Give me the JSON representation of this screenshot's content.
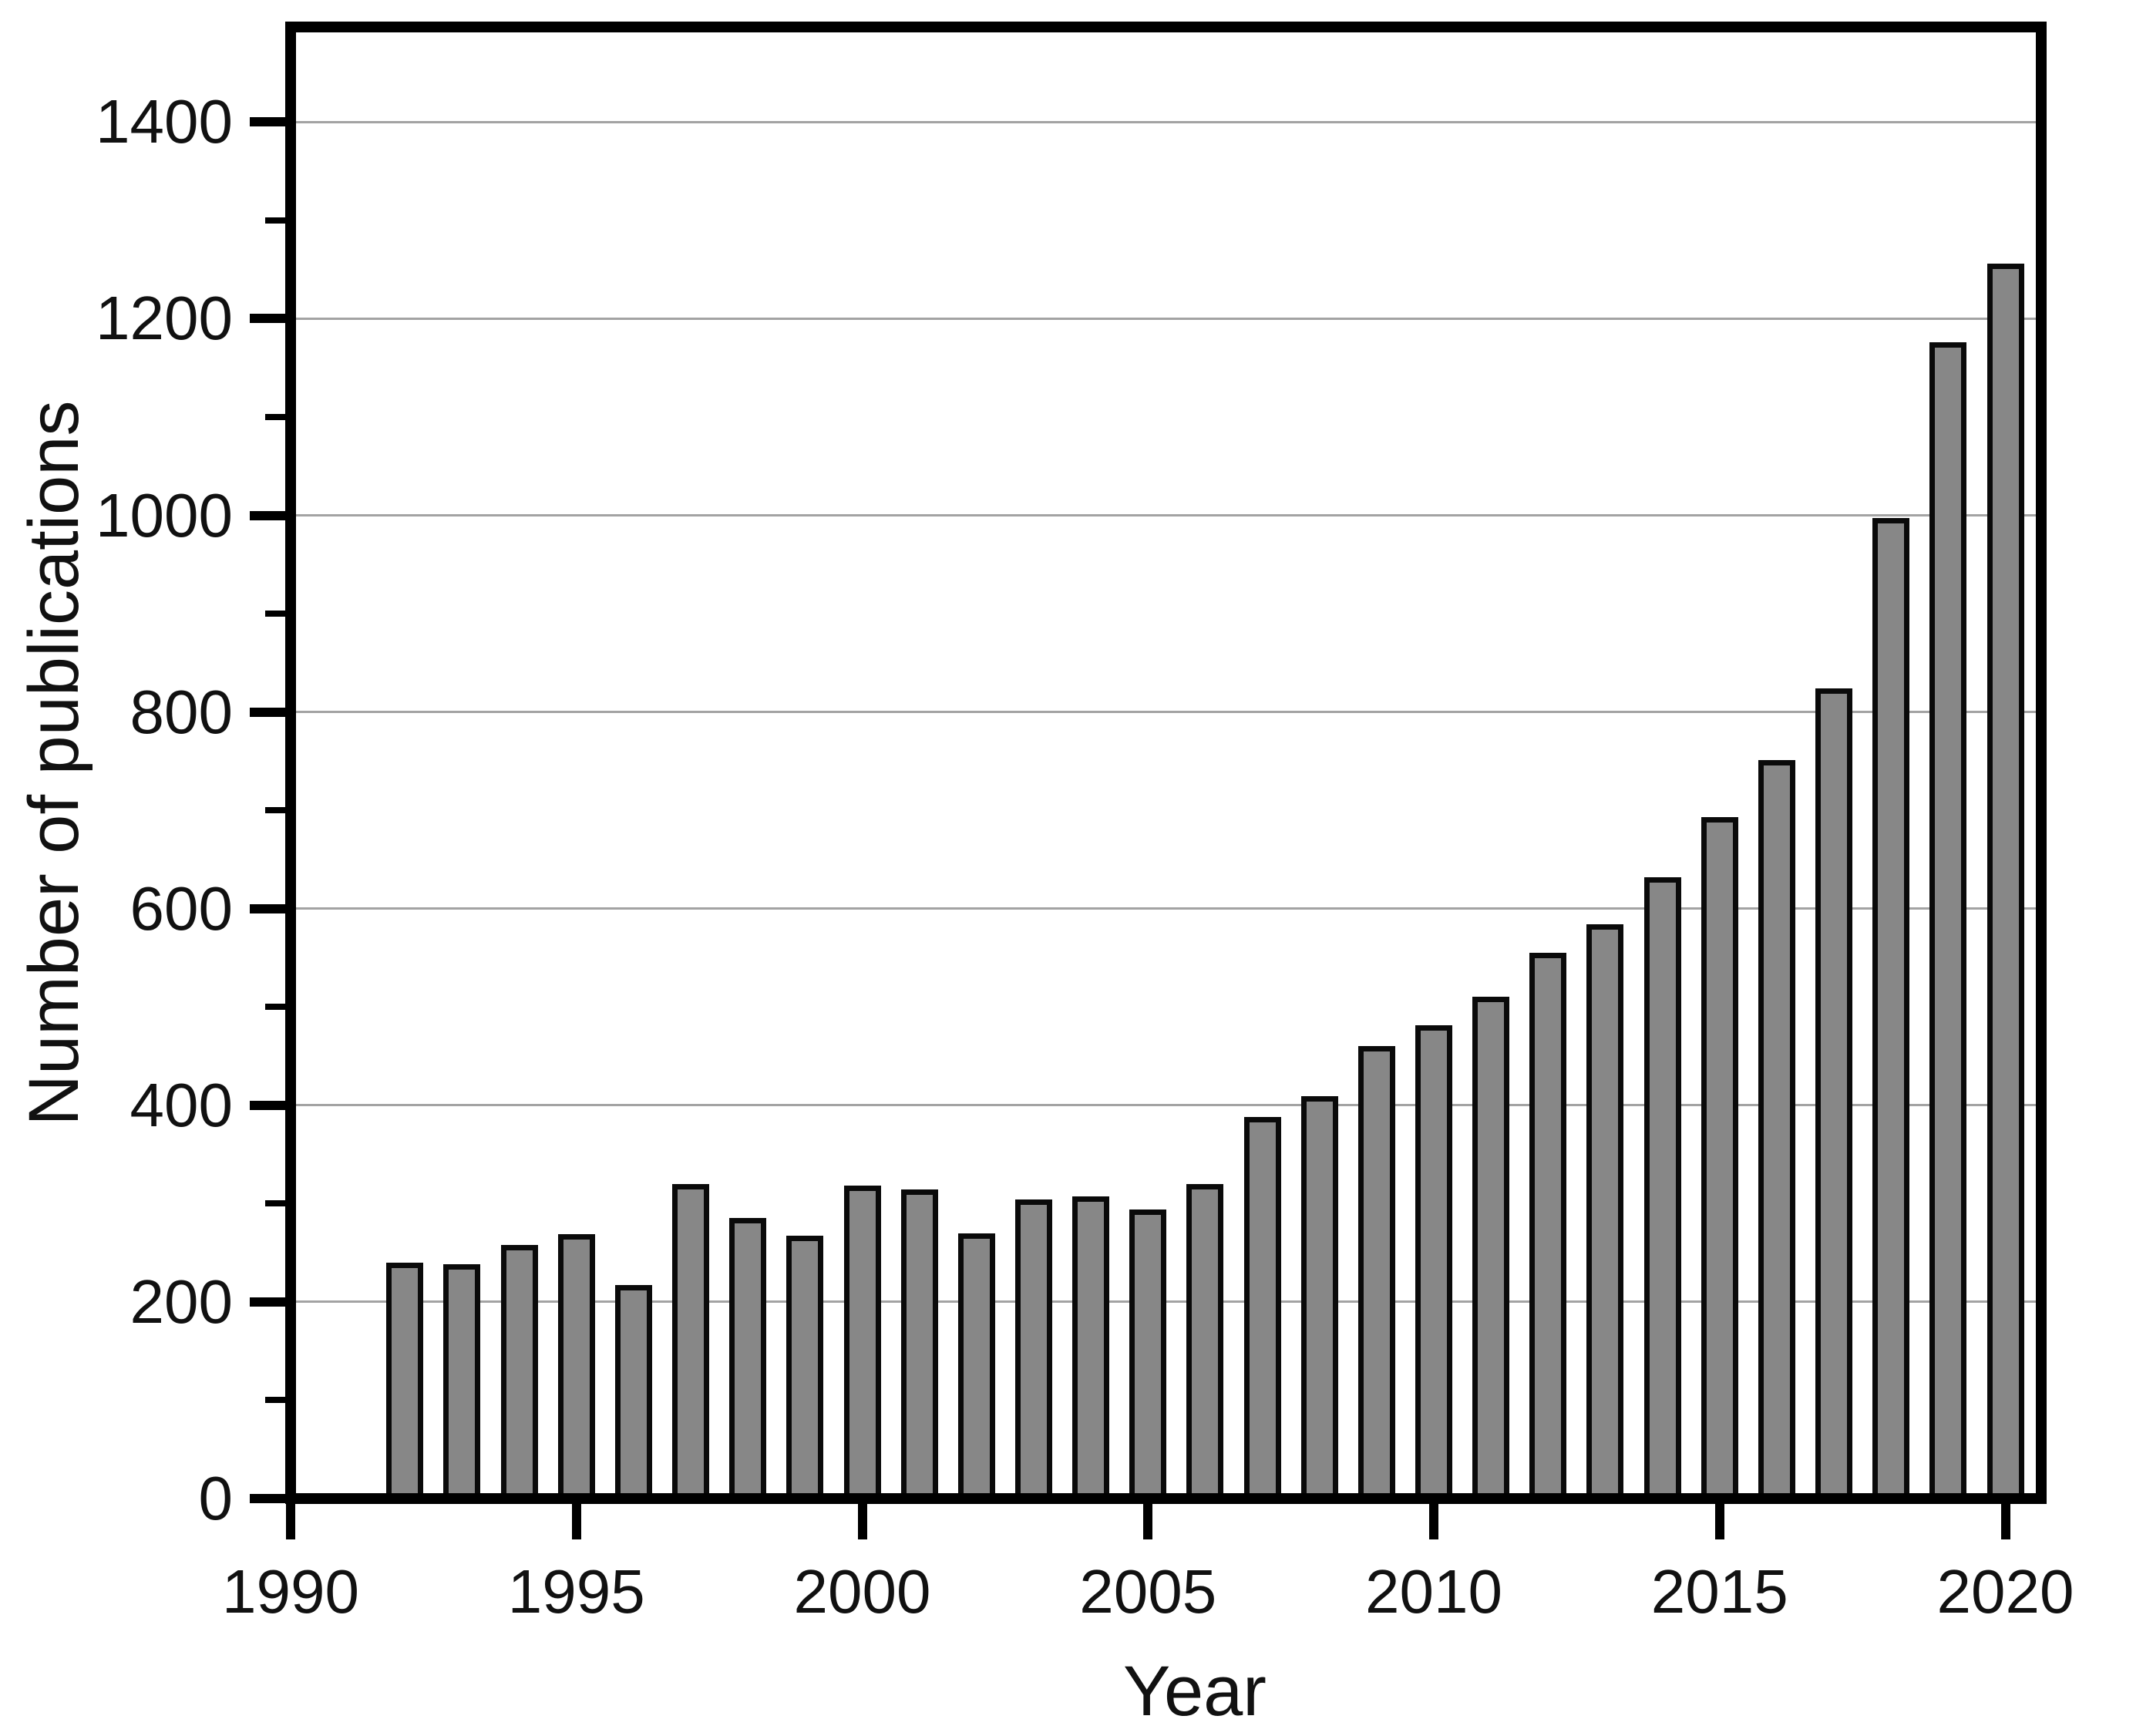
{
  "chart_data": {
    "type": "bar",
    "title": "",
    "xlabel": "Year",
    "ylabel": "Number of publications",
    "categories": [
      1992,
      1993,
      1994,
      1995,
      1996,
      1997,
      1998,
      1999,
      2000,
      2001,
      2002,
      2003,
      2004,
      2005,
      2006,
      2007,
      2008,
      2009,
      2010,
      2011,
      2012,
      2013,
      2014,
      2015,
      2016,
      2017,
      2018,
      2019,
      2020
    ],
    "values": [
      240,
      238,
      258,
      269,
      217,
      320,
      285,
      267,
      318,
      314,
      270,
      304,
      307,
      294,
      320,
      388,
      409,
      460,
      481,
      510,
      555,
      584,
      632,
      693,
      751,
      824,
      997,
      1176,
      1256
    ],
    "ylim": [
      0,
      1500
    ],
    "xlim": [
      1990,
      2020.7
    ],
    "yticks_major": [
      0,
      200,
      400,
      600,
      800,
      1000,
      1200,
      1400
    ],
    "yticks_minor": [
      100,
      300,
      500,
      700,
      900,
      1100,
      1300
    ],
    "xticks_major": [
      1990,
      1995,
      2000,
      2005,
      2010,
      2015,
      2020
    ],
    "grid": "horizontal-major",
    "legend": "none",
    "bar_fill_color": "#878787",
    "bar_border_color": "#0a0a0a",
    "gridline_color": "#a3a3a3",
    "axis_color": "#000000",
    "background_color": "#ffffff"
  }
}
